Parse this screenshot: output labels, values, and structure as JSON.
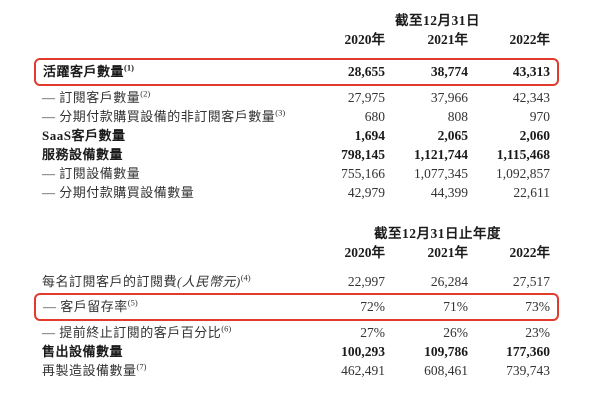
{
  "colors": {
    "highlight": "#e23b2d",
    "text": "#333333"
  },
  "section1": {
    "period_header": "截至12月31日",
    "years": [
      "2020年",
      "2021年",
      "2022年"
    ],
    "rows": [
      {
        "label": "活躍客戶數量",
        "sup": "(1)",
        "values": [
          "28,655",
          "38,774",
          "43,313"
        ]
      },
      {
        "label": "— 訂閱客戶數量",
        "sup": "(2)",
        "values": [
          "27,975",
          "37,966",
          "42,343"
        ]
      },
      {
        "label": "— 分期付款購買設備的非訂閱客戶數量",
        "sup": "(3)",
        "values": [
          "680",
          "808",
          "970"
        ]
      },
      {
        "label": "SaaS客戶數量",
        "values": [
          "1,694",
          "2,065",
          "2,060"
        ]
      },
      {
        "label": "服務設備數量",
        "values": [
          "798,145",
          "1,121,744",
          "1,115,468"
        ]
      },
      {
        "label": "— 訂閱設備數量",
        "values": [
          "755,166",
          "1,077,345",
          "1,092,857"
        ]
      },
      {
        "label": "— 分期付款購買設備數量",
        "values": [
          "42,979",
          "44,399",
          "22,611"
        ]
      }
    ]
  },
  "section2": {
    "period_header": "截至12月31日止年度",
    "years": [
      "2020年",
      "2021年",
      "2022年"
    ],
    "rows": [
      {
        "label": "每名訂閱客戶的訂閱費",
        "label_italic": "(人民幣元)",
        "sup": "(4)",
        "values": [
          "22,997",
          "26,284",
          "27,517"
        ]
      },
      {
        "label": "— 客戶留存率",
        "sup": "(5)",
        "values": [
          "72%",
          "71%",
          "73%"
        ]
      },
      {
        "label": "— 提前終止訂閱的客戶百分比",
        "sup": "(6)",
        "values": [
          "27%",
          "26%",
          "23%"
        ]
      },
      {
        "label": "售出設備數量",
        "values": [
          "100,293",
          "109,786",
          "177,360"
        ]
      },
      {
        "label": "再製造設備數量",
        "sup": "(7)",
        "values": [
          "462,491",
          "608,461",
          "739,743"
        ]
      }
    ]
  }
}
